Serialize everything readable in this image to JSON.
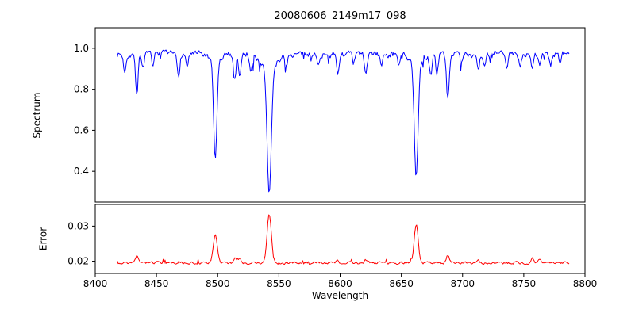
{
  "chart_data": [
    {
      "type": "line",
      "title": "20080606_2149m17_098",
      "ylabel": "Spectrum",
      "xlim": [
        8400,
        8800
      ],
      "ylim": [
        0.25,
        1.1
      ],
      "ytick_values": [
        0.4,
        0.6,
        0.8,
        1.0
      ],
      "ytick_labels": [
        "0.4",
        "0.6",
        "0.8",
        "1.0"
      ],
      "grid": false,
      "legend": "none",
      "series": [
        {
          "name": "spectrum",
          "color": "#0000ff",
          "x_start": 8418,
          "x_end": 8787,
          "step": 0.75,
          "continuum": 0.97,
          "noise_amplitude": 0.013,
          "seed": 7,
          "absorption_lines": [
            {
              "center": 8424.0,
              "depth": 0.08,
              "sigma": 1.0
            },
            {
              "center": 8434.0,
              "depth": 0.2,
              "sigma": 1.0
            },
            {
              "center": 8439.0,
              "depth": 0.06,
              "sigma": 0.9
            },
            {
              "center": 8447.0,
              "depth": 0.05,
              "sigma": 0.9
            },
            {
              "center": 8468.0,
              "depth": 0.1,
              "sigma": 1.0
            },
            {
              "center": 8475.0,
              "depth": 0.06,
              "sigma": 0.9
            },
            {
              "center": 8498.0,
              "depth": 0.47,
              "sigma": 1.3
            },
            {
              "center": 8498.0,
              "depth": 0.05,
              "sigma": 4.0
            },
            {
              "center": 8514.0,
              "depth": 0.13,
              "sigma": 0.9
            },
            {
              "center": 8518.0,
              "depth": 0.1,
              "sigma": 0.9
            },
            {
              "center": 8527.0,
              "depth": 0.07,
              "sigma": 0.9
            },
            {
              "center": 8542.1,
              "depth": 0.6,
              "sigma": 1.7
            },
            {
              "center": 8542.1,
              "depth": 0.08,
              "sigma": 5.5
            },
            {
              "center": 8556.0,
              "depth": 0.05,
              "sigma": 0.9
            },
            {
              "center": 8582.0,
              "depth": 0.06,
              "sigma": 0.9
            },
            {
              "center": 8598.0,
              "depth": 0.1,
              "sigma": 1.0
            },
            {
              "center": 8611.0,
              "depth": 0.05,
              "sigma": 0.9
            },
            {
              "center": 8621.0,
              "depth": 0.09,
              "sigma": 1.0
            },
            {
              "center": 8634.0,
              "depth": 0.05,
              "sigma": 0.9
            },
            {
              "center": 8648.0,
              "depth": 0.06,
              "sigma": 0.9
            },
            {
              "center": 8662.1,
              "depth": 0.54,
              "sigma": 1.5
            },
            {
              "center": 8662.1,
              "depth": 0.06,
              "sigma": 4.5
            },
            {
              "center": 8674.0,
              "depth": 0.11,
              "sigma": 1.0
            },
            {
              "center": 8679.0,
              "depth": 0.09,
              "sigma": 0.9
            },
            {
              "center": 8688.0,
              "depth": 0.21,
              "sigma": 1.0
            },
            {
              "center": 8699.0,
              "depth": 0.05,
              "sigma": 0.9
            },
            {
              "center": 8713.0,
              "depth": 0.07,
              "sigma": 0.9
            },
            {
              "center": 8718.0,
              "depth": 0.05,
              "sigma": 0.9
            },
            {
              "center": 8736.0,
              "depth": 0.06,
              "sigma": 0.9
            },
            {
              "center": 8747.0,
              "depth": 0.05,
              "sigma": 0.9
            },
            {
              "center": 8757.0,
              "depth": 0.08,
              "sigma": 0.9
            },
            {
              "center": 8763.0,
              "depth": 0.06,
              "sigma": 0.9
            },
            {
              "center": 8772.0,
              "depth": 0.05,
              "sigma": 0.9
            },
            {
              "center": 8780.0,
              "depth": 0.05,
              "sigma": 0.9
            }
          ]
        }
      ]
    },
    {
      "type": "line",
      "ylabel": "Error",
      "xlabel": "Wavelength",
      "xlim": [
        8400,
        8800
      ],
      "xtick_values": [
        8400,
        8450,
        8500,
        8550,
        8600,
        8650,
        8700,
        8750,
        8800
      ],
      "xtick_labels": [
        "8400",
        "8450",
        "8500",
        "8550",
        "8600",
        "8650",
        "8700",
        "8750",
        "8800"
      ],
      "ylim": [
        0.0165,
        0.0362
      ],
      "ytick_values": [
        0.02,
        0.03
      ],
      "ytick_labels": [
        "0.02",
        "0.03"
      ],
      "grid": false,
      "legend": "none",
      "series": [
        {
          "name": "error",
          "color": "#ff0000",
          "x_start": 8418,
          "x_end": 8787,
          "step": 0.75,
          "baseline": 0.0195,
          "noise_amplitude": 0.0003,
          "seed": 3,
          "peaks": [
            {
              "center": 8434.0,
              "height": 0.0022,
              "sigma": 1.2
            },
            {
              "center": 8498.0,
              "height": 0.008,
              "sigma": 1.6
            },
            {
              "center": 8514.0,
              "height": 0.0015,
              "sigma": 1.0
            },
            {
              "center": 8518.0,
              "height": 0.0012,
              "sigma": 1.0
            },
            {
              "center": 8542.1,
              "height": 0.014,
              "sigma": 1.7
            },
            {
              "center": 8598.0,
              "height": 0.001,
              "sigma": 1.0
            },
            {
              "center": 8621.0,
              "height": 0.0008,
              "sigma": 1.0
            },
            {
              "center": 8662.1,
              "height": 0.011,
              "sigma": 1.6
            },
            {
              "center": 8688.0,
              "height": 0.0022,
              "sigma": 1.2
            },
            {
              "center": 8713.0,
              "height": 0.0008,
              "sigma": 1.0
            },
            {
              "center": 8757.0,
              "height": 0.0012,
              "sigma": 1.0
            },
            {
              "center": 8763.0,
              "height": 0.001,
              "sigma": 1.0
            }
          ]
        }
      ]
    }
  ]
}
